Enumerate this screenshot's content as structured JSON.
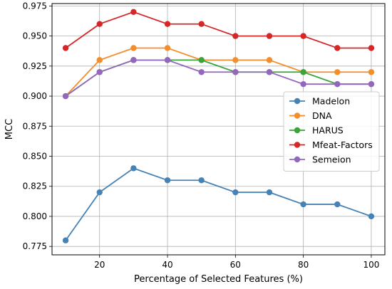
{
  "chart_data": {
    "type": "line",
    "title": "",
    "xlabel": "Percentage of Selected Features (%)",
    "ylabel": "MCC",
    "x": [
      10,
      20,
      30,
      40,
      50,
      60,
      70,
      80,
      90,
      100
    ],
    "xlim": [
      6,
      104
    ],
    "ylim": [
      0.768,
      0.977
    ],
    "xticks": [
      20,
      40,
      60,
      80,
      100
    ],
    "xtick_labels": [
      "20",
      "40",
      "60",
      "80",
      "100"
    ],
    "yticks": [
      0.775,
      0.8,
      0.825,
      0.85,
      0.875,
      0.9,
      0.925,
      0.95,
      0.975
    ],
    "ytick_labels": [
      "0.775",
      "0.800",
      "0.825",
      "0.850",
      "0.875",
      "0.900",
      "0.925",
      "0.950",
      "0.975"
    ],
    "grid": true,
    "legend_position": "center-right",
    "series": [
      {
        "name": "Madelon",
        "color": "#4682b4",
        "values": [
          0.78,
          0.82,
          0.84,
          0.83,
          0.83,
          0.82,
          0.82,
          0.81,
          0.81,
          0.8
        ]
      },
      {
        "name": "DNA",
        "color": "#f28e2b",
        "values": [
          0.9,
          0.93,
          0.94,
          0.94,
          0.93,
          0.93,
          0.93,
          0.92,
          0.92,
          0.92
        ]
      },
      {
        "name": "HARUS",
        "color": "#3aa33a",
        "values": [
          0.9,
          0.92,
          0.93,
          0.93,
          0.93,
          0.92,
          0.92,
          0.92,
          0.91,
          0.91
        ]
      },
      {
        "name": "Mfeat-Factors",
        "color": "#d62728",
        "values": [
          0.94,
          0.96,
          0.97,
          0.96,
          0.96,
          0.95,
          0.95,
          0.95,
          0.94,
          0.94
        ]
      },
      {
        "name": "Semeion",
        "color": "#9467bd",
        "values": [
          0.9,
          0.92,
          0.93,
          0.93,
          0.92,
          0.92,
          0.92,
          0.91,
          0.91,
          0.91
        ]
      }
    ]
  }
}
